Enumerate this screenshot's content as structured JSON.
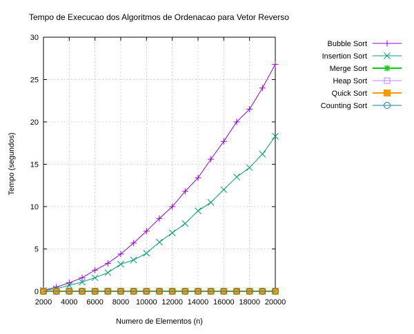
{
  "chart_data": {
    "type": "line",
    "title": "Tempo de Execucao dos Algoritmos de Ordenacao para Vetor Reverso",
    "xlabel": "Numero de Elementos (n)",
    "ylabel": "Tempo (segundos)",
    "xlim": [
      2000,
      20000
    ],
    "ylim": [
      0,
      30
    ],
    "xticks": [
      2000,
      4000,
      6000,
      8000,
      10000,
      12000,
      14000,
      16000,
      18000,
      20000
    ],
    "yticks": [
      0,
      5,
      10,
      15,
      20,
      25,
      30
    ],
    "grid": true,
    "legend_position": "outside-right-top",
    "x": [
      2000,
      3000,
      4000,
      5000,
      6000,
      7000,
      8000,
      9000,
      10000,
      11000,
      12000,
      13000,
      14000,
      15000,
      16000,
      17000,
      18000,
      19000,
      20000
    ],
    "series": [
      {
        "name": "Bubble Sort",
        "color": "#9400d3",
        "marker": "plus",
        "values": [
          0.1,
          0.5,
          1.0,
          1.6,
          2.5,
          3.3,
          4.4,
          5.7,
          7.1,
          8.6,
          10.0,
          11.8,
          13.4,
          15.6,
          17.7,
          20.0,
          21.5,
          24.0,
          26.8
        ]
      },
      {
        "name": "Insertion Sort",
        "color": "#009e73",
        "marker": "cross",
        "values": [
          0.1,
          0.3,
          0.7,
          1.1,
          1.6,
          2.2,
          3.2,
          3.7,
          4.5,
          5.8,
          6.9,
          8.0,
          9.5,
          10.5,
          12.0,
          13.5,
          14.6,
          16.2,
          18.3
        ]
      },
      {
        "name": "Merge Sort",
        "color": "#00cc00",
        "marker": "star",
        "values": [
          0.01,
          0.01,
          0.01,
          0.01,
          0.01,
          0.01,
          0.01,
          0.01,
          0.01,
          0.01,
          0.01,
          0.01,
          0.01,
          0.01,
          0.01,
          0.01,
          0.01,
          0.01,
          0.01
        ]
      },
      {
        "name": "Heap Sort",
        "color": "#c080ff",
        "marker": "open-square",
        "values": [
          0.01,
          0.01,
          0.01,
          0.01,
          0.01,
          0.01,
          0.01,
          0.01,
          0.01,
          0.01,
          0.01,
          0.01,
          0.01,
          0.01,
          0.01,
          0.01,
          0.01,
          0.01,
          0.01
        ]
      },
      {
        "name": "Quick Sort",
        "color": "#ff9900",
        "marker": "filled-square",
        "values": [
          0.01,
          0.01,
          0.01,
          0.01,
          0.01,
          0.01,
          0.01,
          0.01,
          0.01,
          0.01,
          0.01,
          0.01,
          0.01,
          0.01,
          0.01,
          0.01,
          0.01,
          0.01,
          0.01
        ]
      },
      {
        "name": "Counting Sort",
        "color": "#0f7fa0",
        "marker": "open-circle",
        "values": [
          0.0,
          0.0,
          0.0,
          0.0,
          0.0,
          0.0,
          0.0,
          0.0,
          0.0,
          0.0,
          0.0,
          0.0,
          0.0,
          0.0,
          0.0,
          0.0,
          0.0,
          0.0,
          0.0
        ]
      }
    ]
  }
}
